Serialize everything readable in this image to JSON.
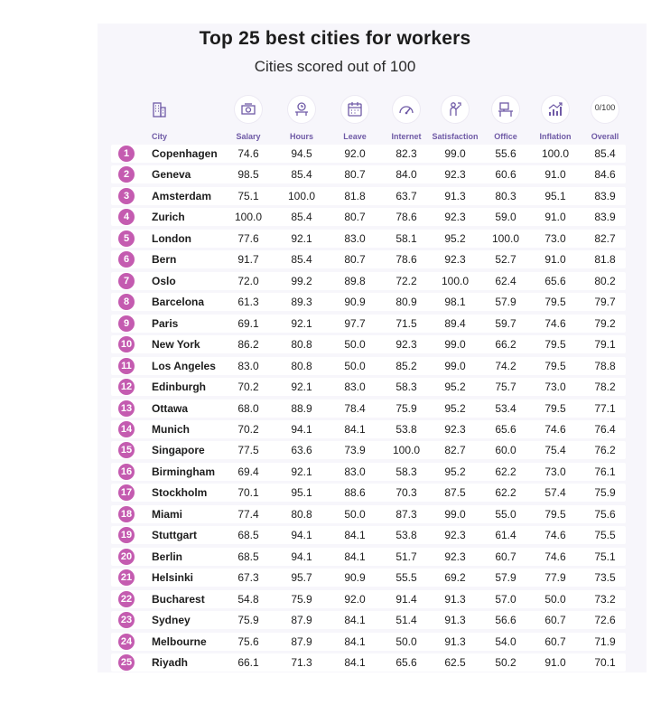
{
  "chart_data": {
    "type": "table",
    "title": "Top 25 best cities for workers",
    "subtitle": "Cities scored out of 100",
    "columns": [
      "City",
      "Salary",
      "Hours",
      "Leave",
      "Internet",
      "Satisfaction",
      "Office",
      "Inflation",
      "Overall"
    ],
    "icons": [
      "city-building-icon",
      "salary-money-icon",
      "hours-clock-icon",
      "leave-calendar-icon",
      "internet-speed-icon",
      "satisfaction-person-icon",
      "office-desk-icon",
      "inflation-chart-icon",
      "overall-score-icon"
    ],
    "overall_icon_text": "0/100",
    "rows": [
      {
        "rank": "1",
        "city": "Copenhagen",
        "values": [
          "74.6",
          "94.5",
          "92.0",
          "82.3",
          "99.0",
          "55.6",
          "100.0",
          "85.4"
        ]
      },
      {
        "rank": "2",
        "city": "Geneva",
        "values": [
          "98.5",
          "85.4",
          "80.7",
          "84.0",
          "92.3",
          "60.6",
          "91.0",
          "84.6"
        ]
      },
      {
        "rank": "3",
        "city": "Amsterdam",
        "values": [
          "75.1",
          "100.0",
          "81.8",
          "63.7",
          "91.3",
          "80.3",
          "95.1",
          "83.9"
        ]
      },
      {
        "rank": "4",
        "city": "Zurich",
        "values": [
          "100.0",
          "85.4",
          "80.7",
          "78.6",
          "92.3",
          "59.0",
          "91.0",
          "83.9"
        ]
      },
      {
        "rank": "5",
        "city": "London",
        "values": [
          "77.6",
          "92.1",
          "83.0",
          "58.1",
          "95.2",
          "100.0",
          "73.0",
          "82.7"
        ]
      },
      {
        "rank": "6",
        "city": "Bern",
        "values": [
          "91.7",
          "85.4",
          "80.7",
          "78.6",
          "92.3",
          "52.7",
          "91.0",
          "81.8"
        ]
      },
      {
        "rank": "7",
        "city": "Oslo",
        "values": [
          "72.0",
          "99.2",
          "89.8",
          "72.2",
          "100.0",
          "62.4",
          "65.6",
          "80.2"
        ]
      },
      {
        "rank": "8",
        "city": "Barcelona",
        "values": [
          "61.3",
          "89.3",
          "90.9",
          "80.9",
          "98.1",
          "57.9",
          "79.5",
          "79.7"
        ]
      },
      {
        "rank": "9",
        "city": "Paris",
        "values": [
          "69.1",
          "92.1",
          "97.7",
          "71.5",
          "89.4",
          "59.7",
          "74.6",
          "79.2"
        ]
      },
      {
        "rank": "10",
        "city": "New York",
        "values": [
          "86.2",
          "80.8",
          "50.0",
          "92.3",
          "99.0",
          "66.2",
          "79.5",
          "79.1"
        ]
      },
      {
        "rank": "11",
        "city": "Los Angeles",
        "values": [
          "83.0",
          "80.8",
          "50.0",
          "85.2",
          "99.0",
          "74.2",
          "79.5",
          "78.8"
        ]
      },
      {
        "rank": "12",
        "city": "Edinburgh",
        "values": [
          "70.2",
          "92.1",
          "83.0",
          "58.3",
          "95.2",
          "75.7",
          "73.0",
          "78.2"
        ]
      },
      {
        "rank": "13",
        "city": "Ottawa",
        "values": [
          "68.0",
          "88.9",
          "78.4",
          "75.9",
          "95.2",
          "53.4",
          "79.5",
          "77.1"
        ]
      },
      {
        "rank": "14",
        "city": "Munich",
        "values": [
          "70.2",
          "94.1",
          "84.1",
          "53.8",
          "92.3",
          "65.6",
          "74.6",
          "76.4"
        ]
      },
      {
        "rank": "15",
        "city": "Singapore",
        "values": [
          "77.5",
          "63.6",
          "73.9",
          "100.0",
          "82.7",
          "60.0",
          "75.4",
          "76.2"
        ]
      },
      {
        "rank": "16",
        "city": "Birmingham",
        "values": [
          "69.4",
          "92.1",
          "83.0",
          "58.3",
          "95.2",
          "62.2",
          "73.0",
          "76.1"
        ]
      },
      {
        "rank": "17",
        "city": "Stockholm",
        "values": [
          "70.1",
          "95.1",
          "88.6",
          "70.3",
          "87.5",
          "62.2",
          "57.4",
          "75.9"
        ]
      },
      {
        "rank": "18",
        "city": "Miami",
        "values": [
          "77.4",
          "80.8",
          "50.0",
          "87.3",
          "99.0",
          "55.0",
          "79.5",
          "75.6"
        ]
      },
      {
        "rank": "19",
        "city": "Stuttgart",
        "values": [
          "68.5",
          "94.1",
          "84.1",
          "53.8",
          "92.3",
          "61.4",
          "74.6",
          "75.5"
        ]
      },
      {
        "rank": "20",
        "city": "Berlin",
        "values": [
          "68.5",
          "94.1",
          "84.1",
          "51.7",
          "92.3",
          "60.7",
          "74.6",
          "75.1"
        ]
      },
      {
        "rank": "21",
        "city": "Helsinki",
        "values": [
          "67.3",
          "95.7",
          "90.9",
          "55.5",
          "69.2",
          "57.9",
          "77.9",
          "73.5"
        ]
      },
      {
        "rank": "22",
        "city": "Bucharest",
        "values": [
          "54.8",
          "75.9",
          "92.0",
          "91.4",
          "91.3",
          "57.0",
          "50.0",
          "73.2"
        ]
      },
      {
        "rank": "23",
        "city": "Sydney",
        "values": [
          "75.9",
          "87.9",
          "84.1",
          "51.4",
          "91.3",
          "56.6",
          "60.7",
          "72.6"
        ]
      },
      {
        "rank": "24",
        "city": "Melbourne",
        "values": [
          "75.6",
          "87.9",
          "84.1",
          "50.0",
          "91.3",
          "54.0",
          "60.7",
          "71.9"
        ]
      },
      {
        "rank": "25",
        "city": "Riyadh",
        "values": [
          "66.1",
          "71.3",
          "84.1",
          "65.6",
          "62.5",
          "50.2",
          "91.0",
          "70.1"
        ]
      }
    ],
    "colors": {
      "accent": "#c45bb0",
      "header_text": "#6f5aa6",
      "row_bg": "#ffffff",
      "panel_bg": "#f7f6fb"
    }
  }
}
